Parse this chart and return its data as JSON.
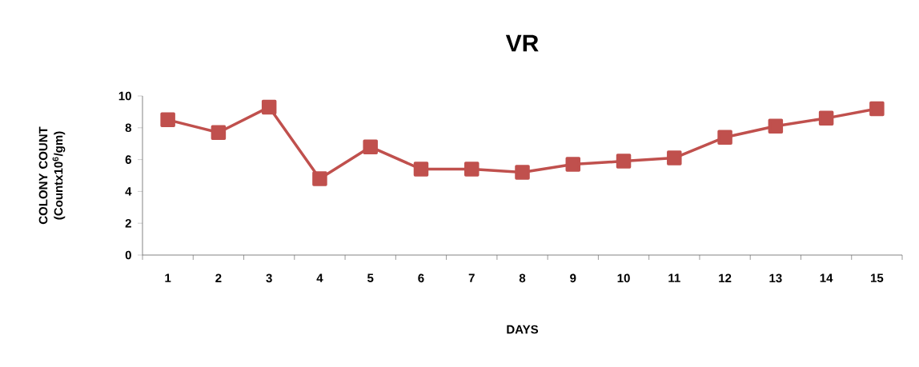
{
  "chart_data": {
    "type": "line",
    "title": "VR",
    "xlabel": "DAYS",
    "ylabel": "COLONY COUNT (Countx10$^{6}$/gm)",
    "categories": [
      "1",
      "2",
      "3",
      "4",
      "5",
      "6",
      "7",
      "8",
      "9",
      "10",
      "11",
      "12",
      "13",
      "14",
      "15"
    ],
    "series": [
      {
        "color": "#c0504d",
        "values": [
          8.5,
          7.7,
          9.3,
          4.8,
          6.8,
          5.4,
          5.4,
          5.2,
          5.7,
          5.9,
          6.1,
          7.4,
          8.1,
          8.6,
          9.2
        ]
      }
    ],
    "ylim": [
      0,
      10
    ],
    "yticks": [
      0,
      2,
      4,
      6,
      8,
      10
    ],
    "grid": false,
    "legend": false,
    "marker": "square",
    "line_style": "solid"
  }
}
